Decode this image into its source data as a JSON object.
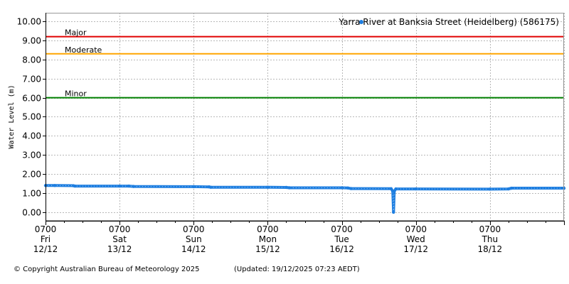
{
  "chart_data": {
    "type": "line",
    "title": "",
    "ylabel": "Water Level (m)",
    "ylim": [
      -0.45,
      10.45
    ],
    "yticks": [
      "0.00",
      "1.00",
      "2.00",
      "3.00",
      "4.00",
      "5.00",
      "6.00",
      "7.00",
      "8.00",
      "9.00",
      "10.00"
    ],
    "xticks": [
      {
        "time": "0700",
        "day": "Fri",
        "date": "12/12"
      },
      {
        "time": "0700",
        "day": "Sat",
        "date": "13/12"
      },
      {
        "time": "0700",
        "day": "Sun",
        "date": "14/12"
      },
      {
        "time": "0700",
        "day": "Mon",
        "date": "15/12"
      },
      {
        "time": "0700",
        "day": "Tue",
        "date": "16/12"
      },
      {
        "time": "0700",
        "day": "Wed",
        "date": "17/12"
      },
      {
        "time": "0700",
        "day": "Thu",
        "date": "18/12"
      }
    ],
    "xlim": [
      "2025-12-12 07:00",
      "2025-12-19 07:00"
    ],
    "grid": true,
    "legend_position": "top-right",
    "thresholds": [
      {
        "name": "Major",
        "value": 9.2,
        "color": "#e00000"
      },
      {
        "name": "Moderate",
        "value": 8.3,
        "color": "#ffa500"
      },
      {
        "name": "Minor",
        "value": 6.0,
        "color": "#008000"
      }
    ],
    "series": [
      {
        "name": "Yarra River at Banksia Street (Heidelberg) (586175)",
        "color": "#1e7ee0",
        "points": [
          [
            "2025-12-12 07:00",
            1.4
          ],
          [
            "2025-12-12 10:00",
            1.4
          ],
          [
            "2025-12-12 16:00",
            1.39
          ],
          [
            "2025-12-12 16:30",
            1.37
          ],
          [
            "2025-12-13 07:00",
            1.37
          ],
          [
            "2025-12-13 10:00",
            1.37
          ],
          [
            "2025-12-13 11:30",
            1.35
          ],
          [
            "2025-12-14 07:00",
            1.34
          ],
          [
            "2025-12-14 12:00",
            1.33
          ],
          [
            "2025-12-14 12:30",
            1.31
          ],
          [
            "2025-12-15 07:00",
            1.31
          ],
          [
            "2025-12-15 13:00",
            1.3
          ],
          [
            "2025-12-15 14:00",
            1.28
          ],
          [
            "2025-12-16 07:00",
            1.28
          ],
          [
            "2025-12-16 09:00",
            1.27
          ],
          [
            "2025-12-16 10:00",
            1.24
          ],
          [
            "2025-12-16 23:00",
            1.23
          ],
          [
            "2025-12-16 23:30",
            1.1
          ],
          [
            "2025-12-16 23:45",
            0.0
          ],
          [
            "2025-12-17 00:00",
            1.1
          ],
          [
            "2025-12-17 00:30",
            1.22
          ],
          [
            "2025-12-17 07:00",
            1.22
          ],
          [
            "2025-12-18 07:00",
            1.21
          ],
          [
            "2025-12-18 13:00",
            1.22
          ],
          [
            "2025-12-18 14:00",
            1.26
          ],
          [
            "2025-12-19 07:00",
            1.26
          ]
        ]
      }
    ]
  },
  "footer": {
    "copyright": "© Copyright Australian Bureau of Meteorology 2025",
    "updated": "(Updated: 19/12/2025 07:23 AEDT)"
  }
}
